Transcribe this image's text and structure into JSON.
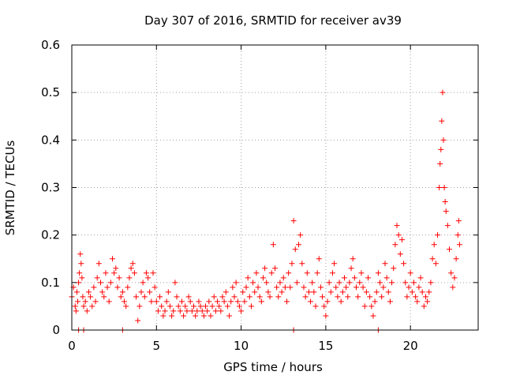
{
  "chart_data": {
    "type": "scatter",
    "title": "Day 307 of 2016, SRMTID for receiver av39",
    "xlabel": "GPS time / hours",
    "ylabel": "SRMTID / TECUs",
    "xlim": [
      0,
      24
    ],
    "ylim": [
      0,
      0.6
    ],
    "xticks": [
      0,
      5,
      10,
      15,
      20
    ],
    "xtick_labels": [
      "0",
      "5",
      "10",
      "15",
      "20"
    ],
    "yticks": [
      0,
      0.1,
      0.2,
      0.3,
      0.4,
      0.5,
      0.6
    ],
    "ytick_labels": [
      "0",
      "0.1",
      "0.2",
      "0.3",
      "0.4",
      "0.5",
      "0.6"
    ],
    "grid": true,
    "marker": "+",
    "colors": {
      "series": "#ff0000",
      "grid": "#a0a0a0",
      "axis": "#000000",
      "background": "#ffffff"
    },
    "series": [
      {
        "name": "SRMTID",
        "points": [
          [
            0.0,
            0.07
          ],
          [
            0.1,
            0.09
          ],
          [
            0.2,
            0.05
          ],
          [
            0.25,
            0.04
          ],
          [
            0.3,
            0.08
          ],
          [
            0.35,
            0.06
          ],
          [
            0.4,
            0.1
          ],
          [
            0.45,
            0.12
          ],
          [
            0.5,
            0.16
          ],
          [
            0.55,
            0.14
          ],
          [
            0.6,
            0.11
          ],
          [
            0.65,
            0.07
          ],
          [
            0.7,
            0.05
          ],
          [
            0.8,
            0.06
          ],
          [
            0.9,
            0.04
          ],
          [
            1.0,
            0.08
          ],
          [
            1.1,
            0.07
          ],
          [
            1.2,
            0.05
          ],
          [
            1.3,
            0.09
          ],
          [
            1.4,
            0.06
          ],
          [
            1.5,
            0.11
          ],
          [
            1.6,
            0.14
          ],
          [
            1.7,
            0.1
          ],
          [
            1.8,
            0.08
          ],
          [
            1.9,
            0.07
          ],
          [
            2.0,
            0.12
          ],
          [
            2.1,
            0.09
          ],
          [
            2.2,
            0.06
          ],
          [
            2.3,
            0.1
          ],
          [
            2.4,
            0.15
          ],
          [
            2.5,
            0.12
          ],
          [
            2.6,
            0.13
          ],
          [
            2.7,
            0.09
          ],
          [
            2.8,
            0.11
          ],
          [
            2.9,
            0.07
          ],
          [
            3.0,
            0.08
          ],
          [
            3.1,
            0.06
          ],
          [
            3.2,
            0.05
          ],
          [
            3.3,
            0.09
          ],
          [
            3.4,
            0.11
          ],
          [
            3.5,
            0.13
          ],
          [
            3.6,
            0.14
          ],
          [
            3.7,
            0.12
          ],
          [
            3.8,
            0.07
          ],
          [
            3.9,
            0.02
          ],
          [
            4.0,
            0.05
          ],
          [
            4.1,
            0.08
          ],
          [
            4.2,
            0.1
          ],
          [
            4.3,
            0.07
          ],
          [
            4.4,
            0.12
          ],
          [
            4.5,
            0.11
          ],
          [
            4.6,
            0.08
          ],
          [
            4.7,
            0.06
          ],
          [
            4.8,
            0.12
          ],
          [
            4.9,
            0.09
          ],
          [
            5.0,
            0.06
          ],
          [
            5.1,
            0.04
          ],
          [
            5.2,
            0.07
          ],
          [
            5.3,
            0.05
          ],
          [
            5.4,
            0.03
          ],
          [
            5.5,
            0.04
          ],
          [
            5.6,
            0.06
          ],
          [
            5.7,
            0.08
          ],
          [
            5.8,
            0.05
          ],
          [
            5.9,
            0.03
          ],
          [
            6.0,
            0.04
          ],
          [
            6.1,
            0.1
          ],
          [
            6.2,
            0.07
          ],
          [
            6.3,
            0.05
          ],
          [
            6.4,
            0.04
          ],
          [
            6.5,
            0.06
          ],
          [
            6.6,
            0.03
          ],
          [
            6.7,
            0.05
          ],
          [
            6.8,
            0.04
          ],
          [
            6.9,
            0.07
          ],
          [
            7.0,
            0.06
          ],
          [
            7.1,
            0.04
          ],
          [
            7.2,
            0.05
          ],
          [
            7.3,
            0.03
          ],
          [
            7.4,
            0.04
          ],
          [
            7.5,
            0.06
          ],
          [
            7.6,
            0.05
          ],
          [
            7.7,
            0.04
          ],
          [
            7.8,
            0.03
          ],
          [
            7.9,
            0.05
          ],
          [
            8.0,
            0.04
          ],
          [
            8.1,
            0.06
          ],
          [
            8.2,
            0.03
          ],
          [
            8.3,
            0.05
          ],
          [
            8.4,
            0.07
          ],
          [
            8.5,
            0.04
          ],
          [
            8.6,
            0.06
          ],
          [
            8.7,
            0.05
          ],
          [
            8.8,
            0.04
          ],
          [
            8.9,
            0.07
          ],
          [
            9.0,
            0.06
          ],
          [
            9.1,
            0.08
          ],
          [
            9.2,
            0.05
          ],
          [
            9.3,
            0.03
          ],
          [
            9.4,
            0.06
          ],
          [
            9.5,
            0.09
          ],
          [
            9.6,
            0.07
          ],
          [
            9.7,
            0.1
          ],
          [
            9.8,
            0.06
          ],
          [
            9.9,
            0.05
          ],
          [
            10.0,
            0.04
          ],
          [
            10.1,
            0.08
          ],
          [
            10.2,
            0.06
          ],
          [
            10.3,
            0.09
          ],
          [
            10.4,
            0.11
          ],
          [
            10.5,
            0.07
          ],
          [
            10.6,
            0.05
          ],
          [
            10.7,
            0.1
          ],
          [
            10.8,
            0.08
          ],
          [
            10.9,
            0.12
          ],
          [
            11.0,
            0.09
          ],
          [
            11.1,
            0.07
          ],
          [
            11.2,
            0.06
          ],
          [
            11.3,
            0.11
          ],
          [
            11.4,
            0.13
          ],
          [
            11.5,
            0.1
          ],
          [
            11.6,
            0.08
          ],
          [
            11.7,
            0.07
          ],
          [
            11.8,
            0.12
          ],
          [
            11.9,
            0.18
          ],
          [
            12.0,
            0.13
          ],
          [
            12.1,
            0.09
          ],
          [
            12.2,
            0.07
          ],
          [
            12.3,
            0.1
          ],
          [
            12.4,
            0.08
          ],
          [
            12.5,
            0.11
          ],
          [
            12.6,
            0.09
          ],
          [
            12.7,
            0.06
          ],
          [
            12.8,
            0.12
          ],
          [
            12.9,
            0.09
          ],
          [
            13.0,
            0.14
          ],
          [
            13.1,
            0.23
          ],
          [
            13.2,
            0.17
          ],
          [
            13.3,
            0.1
          ],
          [
            13.4,
            0.18
          ],
          [
            13.5,
            0.2
          ],
          [
            13.6,
            0.14
          ],
          [
            13.7,
            0.09
          ],
          [
            13.8,
            0.07
          ],
          [
            13.9,
            0.12
          ],
          [
            14.0,
            0.08
          ],
          [
            14.1,
            0.06
          ],
          [
            14.2,
            0.1
          ],
          [
            14.3,
            0.08
          ],
          [
            14.4,
            0.05
          ],
          [
            14.5,
            0.12
          ],
          [
            14.6,
            0.15
          ],
          [
            14.7,
            0.09
          ],
          [
            14.8,
            0.07
          ],
          [
            14.9,
            0.05
          ],
          [
            15.0,
            0.03
          ],
          [
            15.1,
            0.06
          ],
          [
            15.2,
            0.1
          ],
          [
            15.3,
            0.08
          ],
          [
            15.4,
            0.12
          ],
          [
            15.5,
            0.14
          ],
          [
            15.6,
            0.09
          ],
          [
            15.7,
            0.07
          ],
          [
            15.8,
            0.1
          ],
          [
            15.9,
            0.06
          ],
          [
            16.0,
            0.08
          ],
          [
            16.1,
            0.11
          ],
          [
            16.2,
            0.09
          ],
          [
            16.3,
            0.07
          ],
          [
            16.4,
            0.1
          ],
          [
            16.5,
            0.13
          ],
          [
            16.6,
            0.15
          ],
          [
            16.7,
            0.11
          ],
          [
            16.8,
            0.09
          ],
          [
            16.9,
            0.07
          ],
          [
            17.0,
            0.1
          ],
          [
            17.1,
            0.12
          ],
          [
            17.2,
            0.09
          ],
          [
            17.3,
            0.05
          ],
          [
            17.4,
            0.08
          ],
          [
            17.5,
            0.11
          ],
          [
            17.6,
            0.07
          ],
          [
            17.7,
            0.05
          ],
          [
            17.8,
            0.03
          ],
          [
            17.9,
            0.06
          ],
          [
            18.0,
            0.08
          ],
          [
            18.1,
            0.12
          ],
          [
            18.2,
            0.1
          ],
          [
            18.3,
            0.07
          ],
          [
            18.4,
            0.09
          ],
          [
            18.5,
            0.14
          ],
          [
            18.6,
            0.11
          ],
          [
            18.7,
            0.08
          ],
          [
            18.8,
            0.06
          ],
          [
            18.9,
            0.1
          ],
          [
            19.0,
            0.13
          ],
          [
            19.1,
            0.18
          ],
          [
            19.2,
            0.22
          ],
          [
            19.3,
            0.2
          ],
          [
            19.4,
            0.16
          ],
          [
            19.5,
            0.19
          ],
          [
            19.6,
            0.14
          ],
          [
            19.7,
            0.1
          ],
          [
            19.8,
            0.07
          ],
          [
            19.9,
            0.09
          ],
          [
            20.0,
            0.12
          ],
          [
            20.1,
            0.08
          ],
          [
            20.2,
            0.1
          ],
          [
            20.3,
            0.07
          ],
          [
            20.4,
            0.06
          ],
          [
            20.5,
            0.09
          ],
          [
            20.6,
            0.11
          ],
          [
            20.7,
            0.08
          ],
          [
            20.8,
            0.05
          ],
          [
            20.9,
            0.07
          ],
          [
            21.0,
            0.06
          ],
          [
            21.1,
            0.08
          ],
          [
            21.2,
            0.1
          ],
          [
            21.3,
            0.15
          ],
          [
            21.4,
            0.18
          ],
          [
            21.5,
            0.14
          ],
          [
            21.6,
            0.2
          ],
          [
            21.7,
            0.3
          ],
          [
            21.75,
            0.35
          ],
          [
            21.8,
            0.38
          ],
          [
            21.85,
            0.44
          ],
          [
            21.9,
            0.5
          ],
          [
            21.95,
            0.4
          ],
          [
            22.0,
            0.3
          ],
          [
            22.05,
            0.27
          ],
          [
            22.1,
            0.25
          ],
          [
            22.2,
            0.22
          ],
          [
            22.3,
            0.17
          ],
          [
            22.4,
            0.12
          ],
          [
            22.5,
            0.09
          ],
          [
            22.6,
            0.11
          ],
          [
            22.7,
            0.15
          ],
          [
            22.8,
            0.2
          ],
          [
            22.85,
            0.23
          ],
          [
            22.9,
            0.18
          ]
        ],
        "baseline_points": [
          0.4,
          0.7,
          3.0,
          13.1,
          18.1
        ]
      }
    ]
  }
}
